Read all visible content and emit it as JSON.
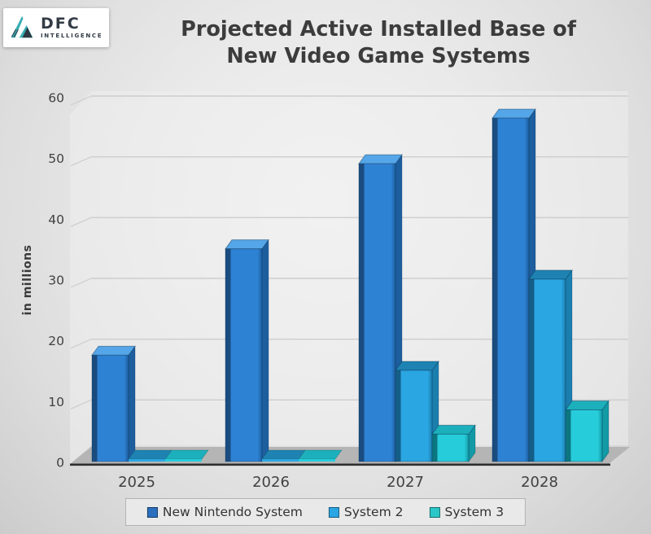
{
  "header": {
    "logo": {
      "brand": "DFC",
      "sub": "INTELLIGENCE"
    },
    "title_line1": "Projected Active Installed Base of",
    "title_line2": "New Video Game Systems"
  },
  "chart_data": {
    "type": "bar",
    "style": "3d-clustered-column",
    "title": "Projected Active Installed Base of New Video Game Systems",
    "xlabel": "",
    "ylabel": "in millions",
    "ylim": [
      0,
      60
    ],
    "yticks": [
      0,
      10,
      20,
      30,
      40,
      50,
      60
    ],
    "grid": true,
    "legend_position": "bottom",
    "categories": [
      "2025",
      "2026",
      "2027",
      "2028"
    ],
    "series": [
      {
        "name": "New Nintendo System",
        "values": [
          17.5,
          35,
          49,
          56.5
        ],
        "color": "#2E82D4",
        "top_color": "#55A6E8",
        "side_color": "#1D5E9E",
        "dark_color": "#1A4C80",
        "legend_color": "#2B6FBE"
      },
      {
        "name": "System 2",
        "values": [
          0.5,
          0.5,
          15,
          30
        ],
        "color": "#2AA6E2",
        "top_color": "#1E83B2",
        "side_color": "#1B7FAE",
        "dark_color": "#145E88",
        "legend_color": "#2AA6E2"
      },
      {
        "name": "System 3",
        "values": [
          0.5,
          0.5,
          4.5,
          8.5
        ],
        "color": "#27CCDA",
        "top_color": "#1CB0BC",
        "side_color": "#129AA5",
        "dark_color": "#0C7680",
        "legend_color": "#2BC7C8"
      }
    ]
  },
  "colors": {
    "background": "#E6E6E6",
    "title": "#3C3C3C",
    "axis_text": "#414141",
    "gridline": "#CDCDCD",
    "floor": "#B5B5B5",
    "baseline": "#2E2E2E",
    "logo_teal": "#35AEB2",
    "logo_dark": "#2E3742"
  }
}
